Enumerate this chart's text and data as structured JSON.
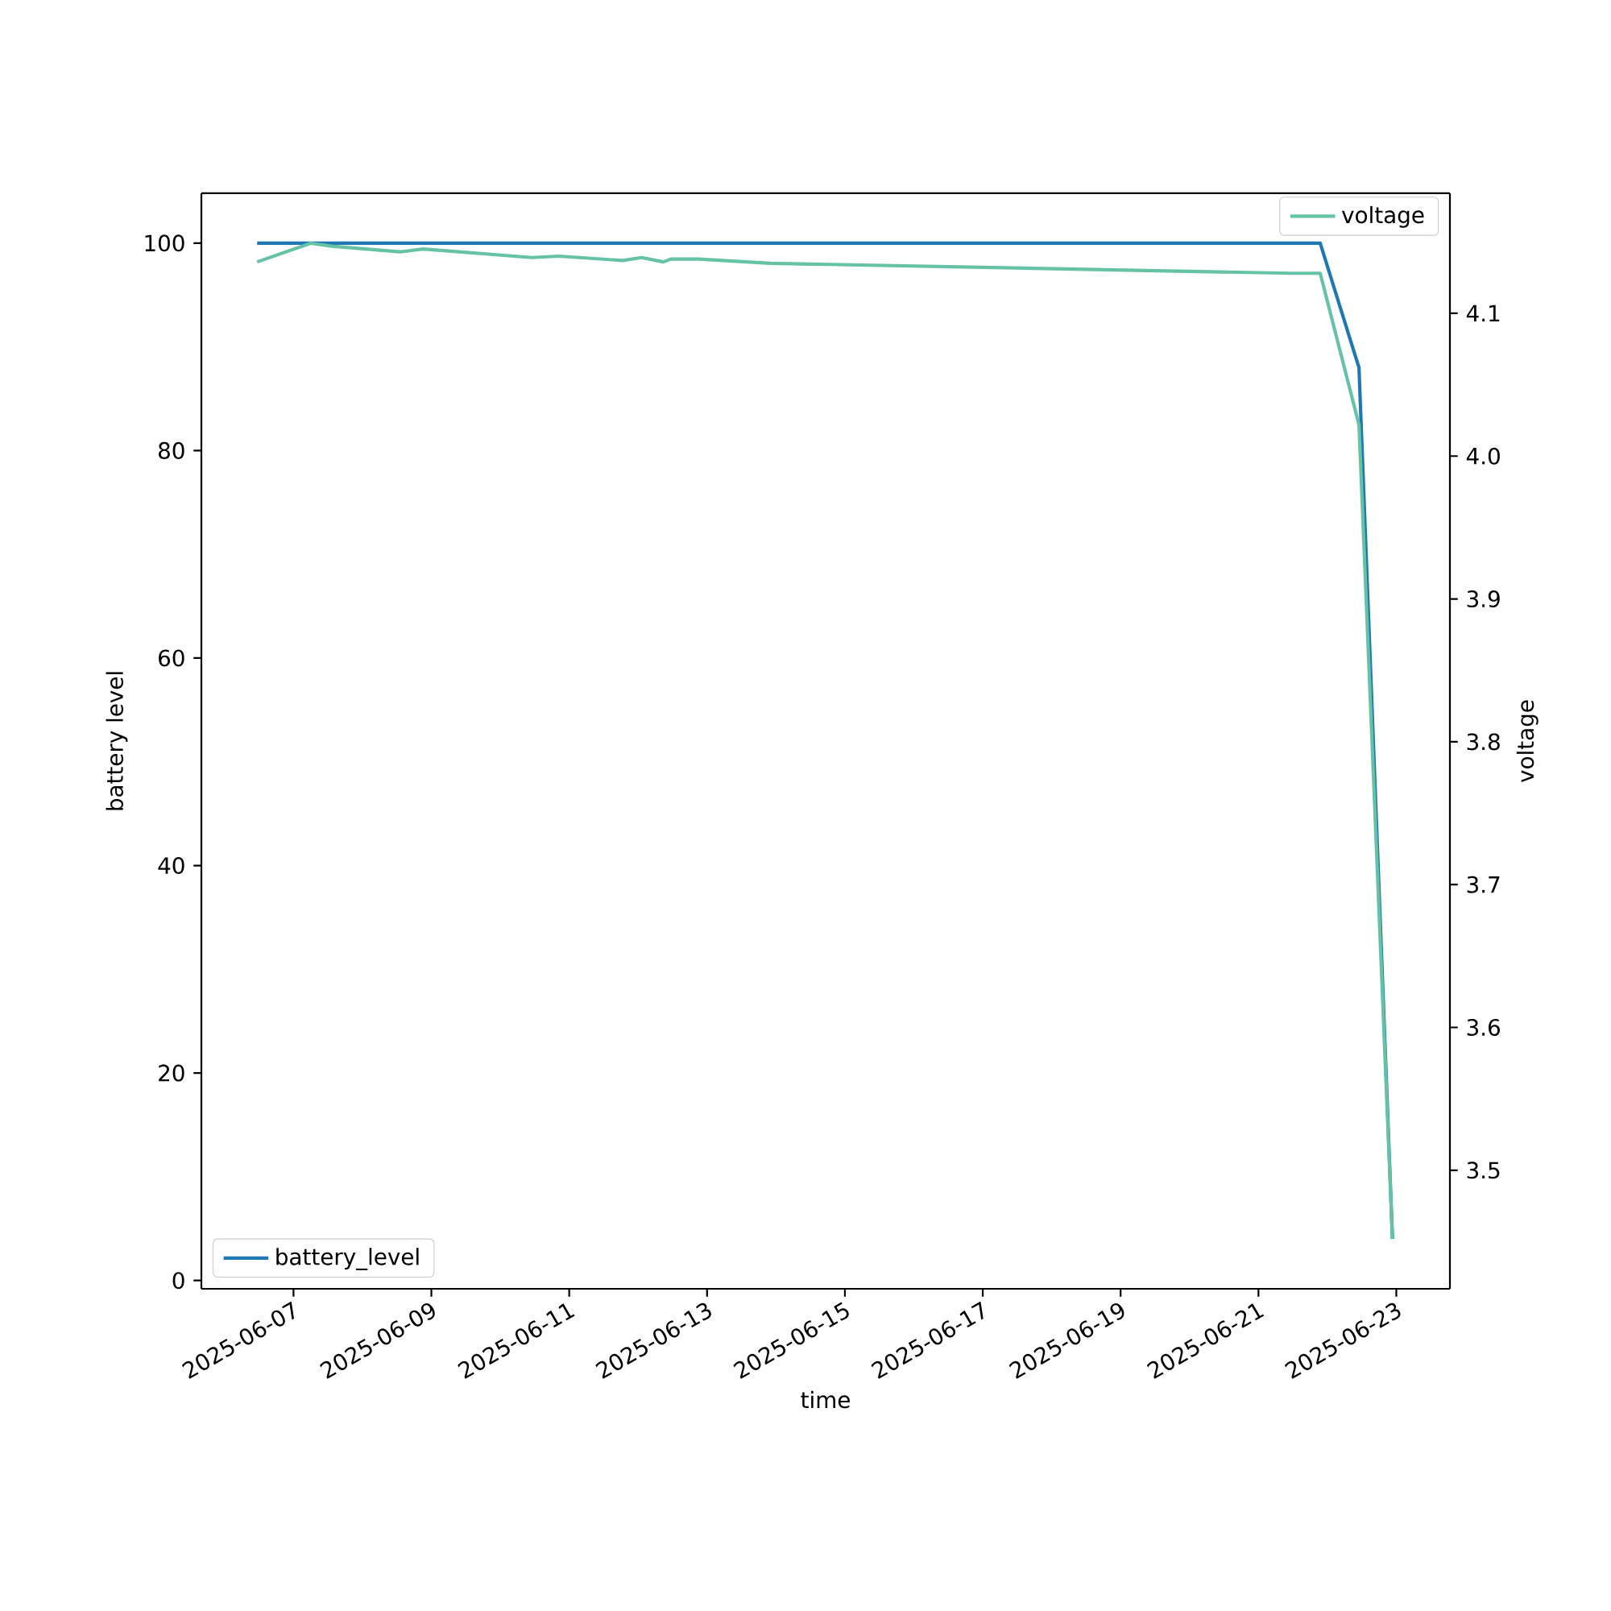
{
  "chart_data": {
    "type": "line",
    "xlabel": "time",
    "ylabel": "battery level",
    "y2label": "voltage",
    "series": [
      {
        "name": "battery_level",
        "color": "#1f77b4",
        "x": [
          "2025-06-06T11:20",
          "2025-06-21T21:30",
          "2025-06-22T11:00",
          "2025-06-22T22:40"
        ],
        "values": [
          100,
          100,
          88,
          4
        ]
      },
      {
        "name": "voltage",
        "color": "#66c2a5",
        "axis": "y2",
        "x": [
          "2025-06-06T11:20",
          "2025-06-07T06:00",
          "2025-06-07T13:20",
          "2025-06-08T13:00",
          "2025-06-08T21:10",
          "2025-06-10T11:00",
          "2025-06-10T20:20",
          "2025-06-11T18:40",
          "2025-06-12T01:10",
          "2025-06-12T08:45",
          "2025-06-12T11:30",
          "2025-06-12T21:00",
          "2025-06-13T22:00",
          "2025-06-21T11:30",
          "2025-06-21T21:30",
          "2025-06-22T11:00",
          "2025-06-22T22:40"
        ],
        "values": [
          4.136,
          4.149,
          4.147,
          4.143,
          4.145,
          4.139,
          4.14,
          4.137,
          4.139,
          4.136,
          4.138,
          4.138,
          4.135,
          4.128,
          4.128,
          4.022,
          3.452
        ]
      }
    ],
    "legend": [
      "bottom left",
      "top right"
    ],
    "xlim": [
      "2025-06-05T15:55",
      "2025-06-23T18:40"
    ],
    "xticks": [
      "2025-06-07",
      "2025-06-09",
      "2025-06-11",
      "2025-06-13",
      "2025-06-15",
      "2025-06-17",
      "2025-06-19",
      "2025-06-21",
      "2025-06-23"
    ],
    "ylim": [
      -0.8,
      104.8
    ],
    "yticks": [
      0,
      20,
      40,
      60,
      80,
      100
    ],
    "y2lim": [
      3.417,
      4.184
    ],
    "y2ticks": [
      3.5,
      3.6,
      3.7,
      3.8,
      3.9,
      {
        "value": 4,
        "label": "4.0"
      },
      4.1
    ]
  }
}
